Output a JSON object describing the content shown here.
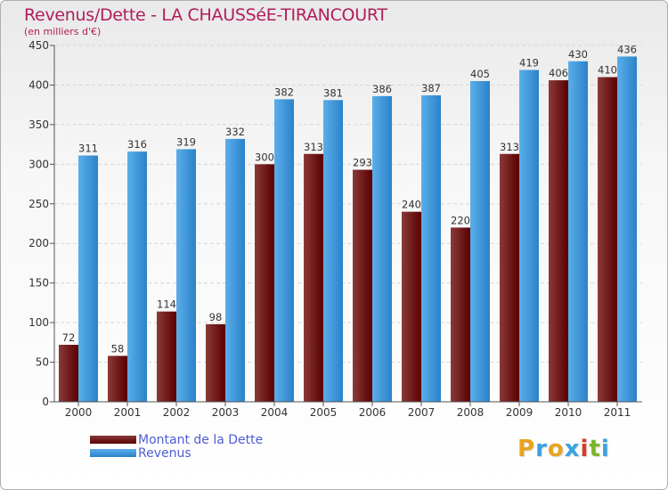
{
  "colors": {
    "title": "#b01e5a",
    "dette_dark": "#5a0000",
    "dette_light": "#8a3a3a",
    "revenus_dark": "#2b82c8",
    "revenus_light": "#5aaeea",
    "legend_text": "#4f5dd1",
    "axis": "#555555",
    "grid": "#d6d6d6"
  },
  "chart_data": {
    "type": "bar",
    "title": "Revenus/Dette - LA CHAUSSéE-TIRANCOURT",
    "subtitle": "(en milliers d'€)",
    "xlabel": "",
    "ylabel": "",
    "categories": [
      "2000",
      "2001",
      "2002",
      "2003",
      "2004",
      "2005",
      "2006",
      "2007",
      "2008",
      "2009",
      "2010",
      "2011"
    ],
    "series": [
      {
        "name": "Montant de la Dette",
        "values": [
          72,
          58,
          114,
          98,
          300,
          313,
          293,
          240,
          220,
          313,
          406,
          410
        ]
      },
      {
        "name": "Revenus",
        "values": [
          311,
          316,
          319,
          332,
          382,
          381,
          386,
          387,
          405,
          419,
          430,
          436
        ]
      }
    ],
    "ylim": [
      0,
      450
    ],
    "yticks": [
      0,
      50,
      100,
      150,
      200,
      250,
      300,
      350,
      400,
      450
    ],
    "grid": true,
    "legend_position": "bottom-left"
  },
  "legend": {
    "items": [
      {
        "label": "Montant de la Dette"
      },
      {
        "label": "Revenus"
      }
    ]
  },
  "logo": {
    "letters": [
      "P",
      "r",
      "o",
      "x",
      "i",
      "t",
      "i"
    ],
    "colors": [
      "#e8a321",
      "#3aa3e0",
      "#e8a321",
      "#3aa3e0",
      "#d63c2c",
      "#7ab52a",
      "#3aa3e0"
    ]
  }
}
